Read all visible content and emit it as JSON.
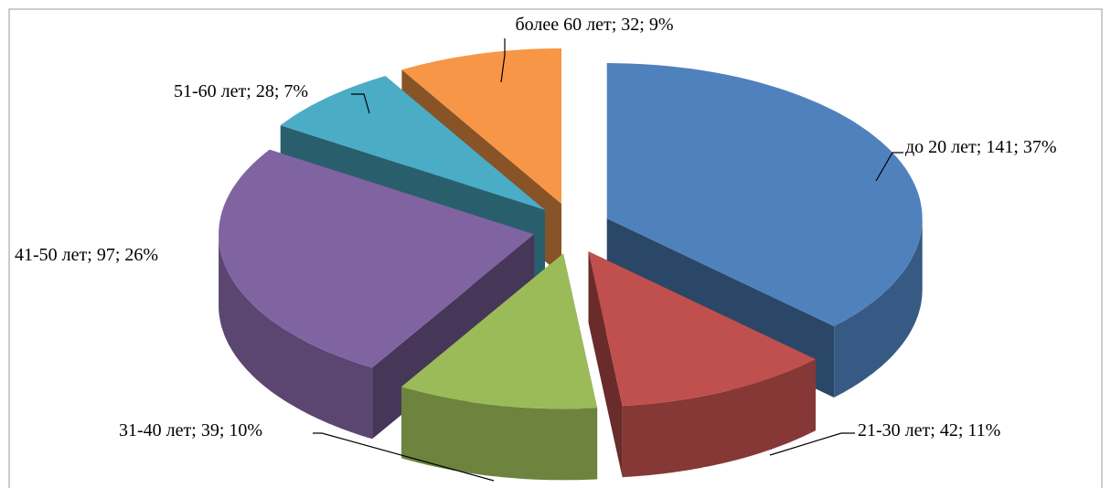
{
  "chart_data": {
    "type": "pie",
    "values": [
      141,
      42,
      39,
      97,
      28,
      32
    ],
    "value_labels": [
      "до 20 лет; 141; 37%",
      "21-30 лет; 42; 11%",
      "31-40 лет; 39; 10%",
      "41-50 лет; 97; 26%",
      "51-60 лет; 28; 7%",
      "более 60 лет; 32; 9%"
    ],
    "colors": [
      "#4f81bd",
      "#c0504d",
      "#9bbb59",
      "#8064a2",
      "#4bacc6",
      "#f79646"
    ]
  }
}
